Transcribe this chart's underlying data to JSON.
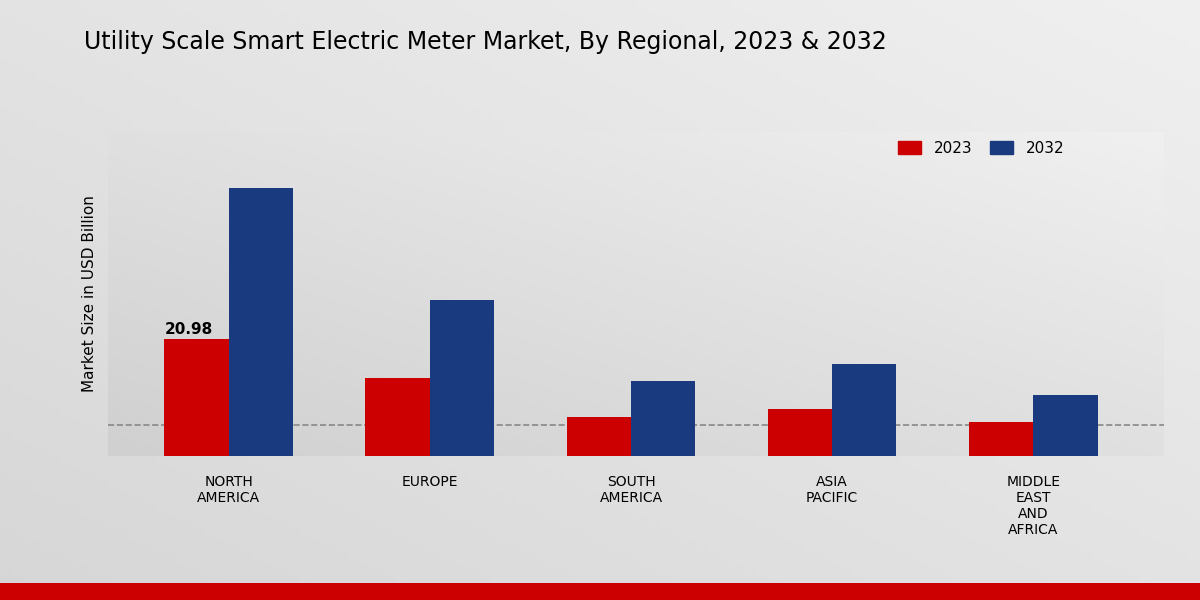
{
  "title": "Utility Scale Smart Electric Meter Market, By Regional, 2023 & 2032",
  "ylabel": "Market Size in USD Billion",
  "categories": [
    "NORTH\nAMERICA",
    "EUROPE",
    "SOUTH\nAMERICA",
    "ASIA\nPACIFIC",
    "MIDDLE\nEAST\nAND\nAFRICA"
  ],
  "values_2023": [
    20.98,
    14.0,
    7.0,
    8.5,
    6.0
  ],
  "values_2032": [
    48.0,
    28.0,
    13.5,
    16.5,
    11.0
  ],
  "color_2023": "#CC0000",
  "color_2032": "#1A3A80",
  "annotation_value": "20.98",
  "annotation_region_idx": 0,
  "dashed_line_y": 5.5,
  "legend_labels": [
    "2023",
    "2032"
  ],
  "background_color_light": "#F0F0F0",
  "background_color_dark": "#D0D0D0",
  "bar_width": 0.32,
  "ylim": [
    0,
    58
  ],
  "footer_color": "#CC0000",
  "title_fontsize": 17,
  "ylabel_fontsize": 11,
  "xlabel_fontsize": 10
}
